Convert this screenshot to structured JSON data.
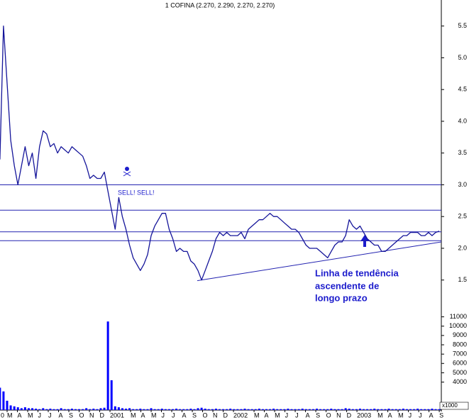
{
  "chart_data": [
    {
      "type": "line",
      "title": "1 COFINA (2.270, 2.290, 2.270, 2.270)",
      "xlim": [
        1.31,
        44.2
      ],
      "ylim": [
        1.05,
        5.91
      ],
      "yticks": [
        1.5,
        {
          "value": 2,
          "label": "2.0"
        },
        2.5,
        {
          "value": 3,
          "label": "3.0"
        },
        3.5,
        {
          "value": 4,
          "label": "4.0"
        },
        4.5,
        {
          "value": 5,
          "label": "5.0"
        },
        5.5
      ],
      "series": [
        {
          "color": "#15159a",
          "x": [
            1.3,
            1.65,
            2,
            2.35,
            2.7,
            3.05,
            3.4,
            3.75,
            4.1,
            4.45,
            4.8,
            5.15,
            5.5,
            5.85,
            6.2,
            6.55,
            6.9,
            7.25,
            7.6,
            7.95,
            8.3,
            8.65,
            9,
            9.35,
            9.7,
            10.05,
            10.4,
            10.75,
            11.1,
            11.45,
            11.8,
            12.15,
            12.5,
            12.85,
            13.2,
            13.55,
            13.9,
            14.25,
            14.6,
            14.95,
            15.3,
            15.65,
            16,
            16.35,
            16.7,
            17.05,
            17.4,
            17.75,
            18.1,
            18.45,
            18.8,
            19.15,
            19.5,
            19.85,
            20.2,
            20.55,
            20.9,
            21.25,
            21.6,
            21.95,
            22.3,
            22.65,
            23,
            23.35,
            23.7,
            24.05,
            24.4,
            24.75,
            25.1,
            25.45,
            25.8,
            26.15,
            26.5,
            26.85,
            27.2,
            27.55,
            27.9,
            28.25,
            28.6,
            28.95,
            29.3,
            29.65,
            30,
            30.35,
            30.7,
            31.05,
            31.4,
            31.75,
            32.1,
            32.45,
            32.8,
            33.15,
            33.5,
            33.85,
            34.2,
            34.55,
            34.9,
            35.25,
            35.6,
            35.95,
            36.3,
            36.65,
            37,
            37.35,
            37.7,
            38.05,
            38.4,
            38.75,
            39.1,
            39.45,
            39.8,
            40.15,
            40.5,
            40.85,
            41.2,
            41.55,
            41.9,
            42.25,
            42.6,
            42.95,
            43.3,
            43.65,
            44
          ],
          "values": [
            3.4,
            5.5,
            4.6,
            3.7,
            3.3,
            3.0,
            3.3,
            3.6,
            3.3,
            3.5,
            3.1,
            3.6,
            3.85,
            3.8,
            3.6,
            3.65,
            3.5,
            3.6,
            3.55,
            3.5,
            3.6,
            3.55,
            3.5,
            3.45,
            3.3,
            3.1,
            3.15,
            3.1,
            3.1,
            3.2,
            2.9,
            2.6,
            2.3,
            2.8,
            2.5,
            2.3,
            2.05,
            1.85,
            1.75,
            1.65,
            1.75,
            1.9,
            2.2,
            2.35,
            2.45,
            2.55,
            2.55,
            2.3,
            2.15,
            1.95,
            2.0,
            1.95,
            1.95,
            1.8,
            1.75,
            1.65,
            1.5,
            1.65,
            1.8,
            1.95,
            2.15,
            2.25,
            2.2,
            2.25,
            2.2,
            2.2,
            2.2,
            2.25,
            2.15,
            2.3,
            2.35,
            2.4,
            2.45,
            2.45,
            2.5,
            2.55,
            2.5,
            2.5,
            2.45,
            2.4,
            2.35,
            2.3,
            2.3,
            2.25,
            2.15,
            2.05,
            2.0,
            2.0,
            2.0,
            1.95,
            1.9,
            1.85,
            1.95,
            2.05,
            2.1,
            2.1,
            2.2,
            2.45,
            2.35,
            2.3,
            2.35,
            2.25,
            2.15,
            2.1,
            2.05,
            2.05,
            1.95,
            1.95,
            2.0,
            2.05,
            2.1,
            2.15,
            2.2,
            2.2,
            2.25,
            2.25,
            2.25,
            2.2,
            2.2,
            2.25,
            2.2,
            2.25,
            2.27
          ]
        }
      ],
      "hlines": [
        3.0,
        2.6,
        2.26,
        2.12
      ],
      "line_color": "#2222b0",
      "trendline": {
        "x": [
          20.48,
          44.2
        ],
        "y": [
          1.49,
          2.1
        ]
      },
      "annotations": [
        "SELL! SELL!",
        "Linha de tendência",
        "ascendente de",
        "longo prazo"
      ]
    },
    {
      "type": "bar",
      "unit_label": "x1000",
      "xlim": [
        1.31,
        44.2
      ],
      "ylim": [
        1000,
        11500
      ],
      "yticks": [
        4000,
        5000,
        6000,
        7000,
        8000,
        9000,
        10000,
        11000
      ],
      "xticks": [
        {
          "value": 0,
          "label": "0"
        },
        {
          "value": 2,
          "label": "M"
        },
        {
          "value": 3,
          "label": "A"
        },
        {
          "value": 4,
          "label": "M"
        },
        {
          "value": 5,
          "label": "J"
        },
        {
          "value": 6,
          "label": "J"
        },
        {
          "value": 7,
          "label": "A"
        },
        {
          "value": 8,
          "label": "S"
        },
        {
          "value": 9,
          "label": "O"
        },
        {
          "value": 10,
          "label": "N"
        },
        {
          "value": 11,
          "label": "D"
        },
        {
          "value": 12,
          "label": "2001"
        },
        {
          "value": 14,
          "label": "M"
        },
        {
          "value": 15,
          "label": "A"
        },
        {
          "value": 16,
          "label": "M"
        },
        {
          "value": 17,
          "label": "J"
        },
        {
          "value": 18,
          "label": "J"
        },
        {
          "value": 19,
          "label": "A"
        },
        {
          "value": 20,
          "label": "S"
        },
        {
          "value": 21,
          "label": "O"
        },
        {
          "value": 22,
          "label": "N"
        },
        {
          "value": 23,
          "label": "D"
        },
        {
          "value": 24,
          "label": "2002"
        },
        {
          "value": 26,
          "label": "M"
        },
        {
          "value": 27,
          "label": "A"
        },
        {
          "value": 28,
          "label": "M"
        },
        {
          "value": 29,
          "label": "J"
        },
        {
          "value": 30,
          "label": "J"
        },
        {
          "value": 31,
          "label": "A"
        },
        {
          "value": 32,
          "label": "S"
        },
        {
          "value": 33,
          "label": "O"
        },
        {
          "value": 34,
          "label": "N"
        },
        {
          "value": 35,
          "label": "D"
        },
        {
          "value": 36,
          "label": "2003"
        },
        {
          "value": 38,
          "label": "M"
        },
        {
          "value": 39,
          "label": "A"
        },
        {
          "value": 40,
          "label": "M"
        },
        {
          "value": 41,
          "label": "J"
        },
        {
          "value": 42,
          "label": "J"
        },
        {
          "value": 43,
          "label": "A"
        },
        {
          "value": 44,
          "label": "S"
        }
      ],
      "series": [
        {
          "color": "#0000ff",
          "x": [
            1.3,
            1.65,
            2,
            2.35,
            2.7,
            3.05,
            3.4,
            3.75,
            4.1,
            4.45,
            4.8,
            5.15,
            5.5,
            5.85,
            6.2,
            6.55,
            6.9,
            7.25,
            7.6,
            7.95,
            8.3,
            8.65,
            9,
            9.35,
            9.7,
            10.05,
            10.4,
            10.75,
            11.1,
            11.45,
            11.8,
            12.15,
            12.5,
            12.85,
            13.2,
            13.55,
            13.9,
            14.25,
            14.6,
            14.95,
            15.3,
            15.65,
            16,
            16.35,
            16.7,
            17.05,
            17.4,
            17.75,
            18.1,
            18.45,
            18.8,
            19.15,
            19.5,
            19.85,
            20.2,
            20.55,
            20.9,
            21.25,
            21.6,
            21.95,
            22.3,
            22.65,
            23,
            23.35,
            23.7,
            24.05,
            24.4,
            24.75,
            25.1,
            25.45,
            25.8,
            26.15,
            26.5,
            26.85,
            27.2,
            27.55,
            27.9,
            28.25,
            28.6,
            28.95,
            29.3,
            29.65,
            30,
            30.35,
            30.7,
            31.05,
            31.4,
            31.75,
            32.1,
            32.45,
            32.8,
            33.15,
            33.5,
            33.85,
            34.2,
            34.55,
            34.9,
            35.25,
            35.6,
            35.95,
            36.3,
            36.65,
            37,
            37.35,
            37.7,
            38.05,
            38.4,
            38.75,
            39.1,
            39.45,
            39.8,
            40.15,
            40.5,
            40.85,
            41.2,
            41.55,
            41.9,
            42.25,
            42.6,
            42.95,
            43.3,
            43.65,
            44
          ],
          "values": [
            3400,
            3000,
            2000,
            1500,
            1400,
            1300,
            1200,
            1300,
            1200,
            1200,
            1150,
            1100,
            1200,
            1100,
            1150,
            1100,
            1100,
            1200,
            1100,
            1100,
            1150,
            1100,
            1100,
            1100,
            1200,
            1100,
            1150,
            1100,
            1200,
            1250,
            10500,
            4200,
            1400,
            1300,
            1200,
            1150,
            1200,
            1100,
            1100,
            1150,
            1100,
            1100,
            1200,
            1100,
            1100,
            1150,
            1100,
            1100,
            1100,
            1150,
            1100,
            1100,
            1100,
            1150,
            1100,
            1200,
            1250,
            1150,
            1100,
            1100,
            1150,
            1100,
            1100,
            1100,
            1150,
            1100,
            1100,
            1100,
            1150,
            1100,
            1100,
            1100,
            1150,
            1100,
            1100,
            1100,
            1150,
            1100,
            1100,
            1100,
            1150,
            1100,
            1100,
            1100,
            1150,
            1100,
            1100,
            1100,
            1150,
            1100,
            1100,
            1100,
            1150,
            1100,
            1100,
            1100,
            1200,
            1150,
            1100,
            1100,
            1150,
            1100,
            1100,
            1100,
            1150,
            1100,
            1100,
            1100,
            1150,
            1100,
            1100,
            1100,
            1150,
            1100,
            1100,
            1100,
            1150,
            1100,
            1100,
            1100,
            1150,
            1100,
            1100
          ]
        }
      ]
    }
  ]
}
